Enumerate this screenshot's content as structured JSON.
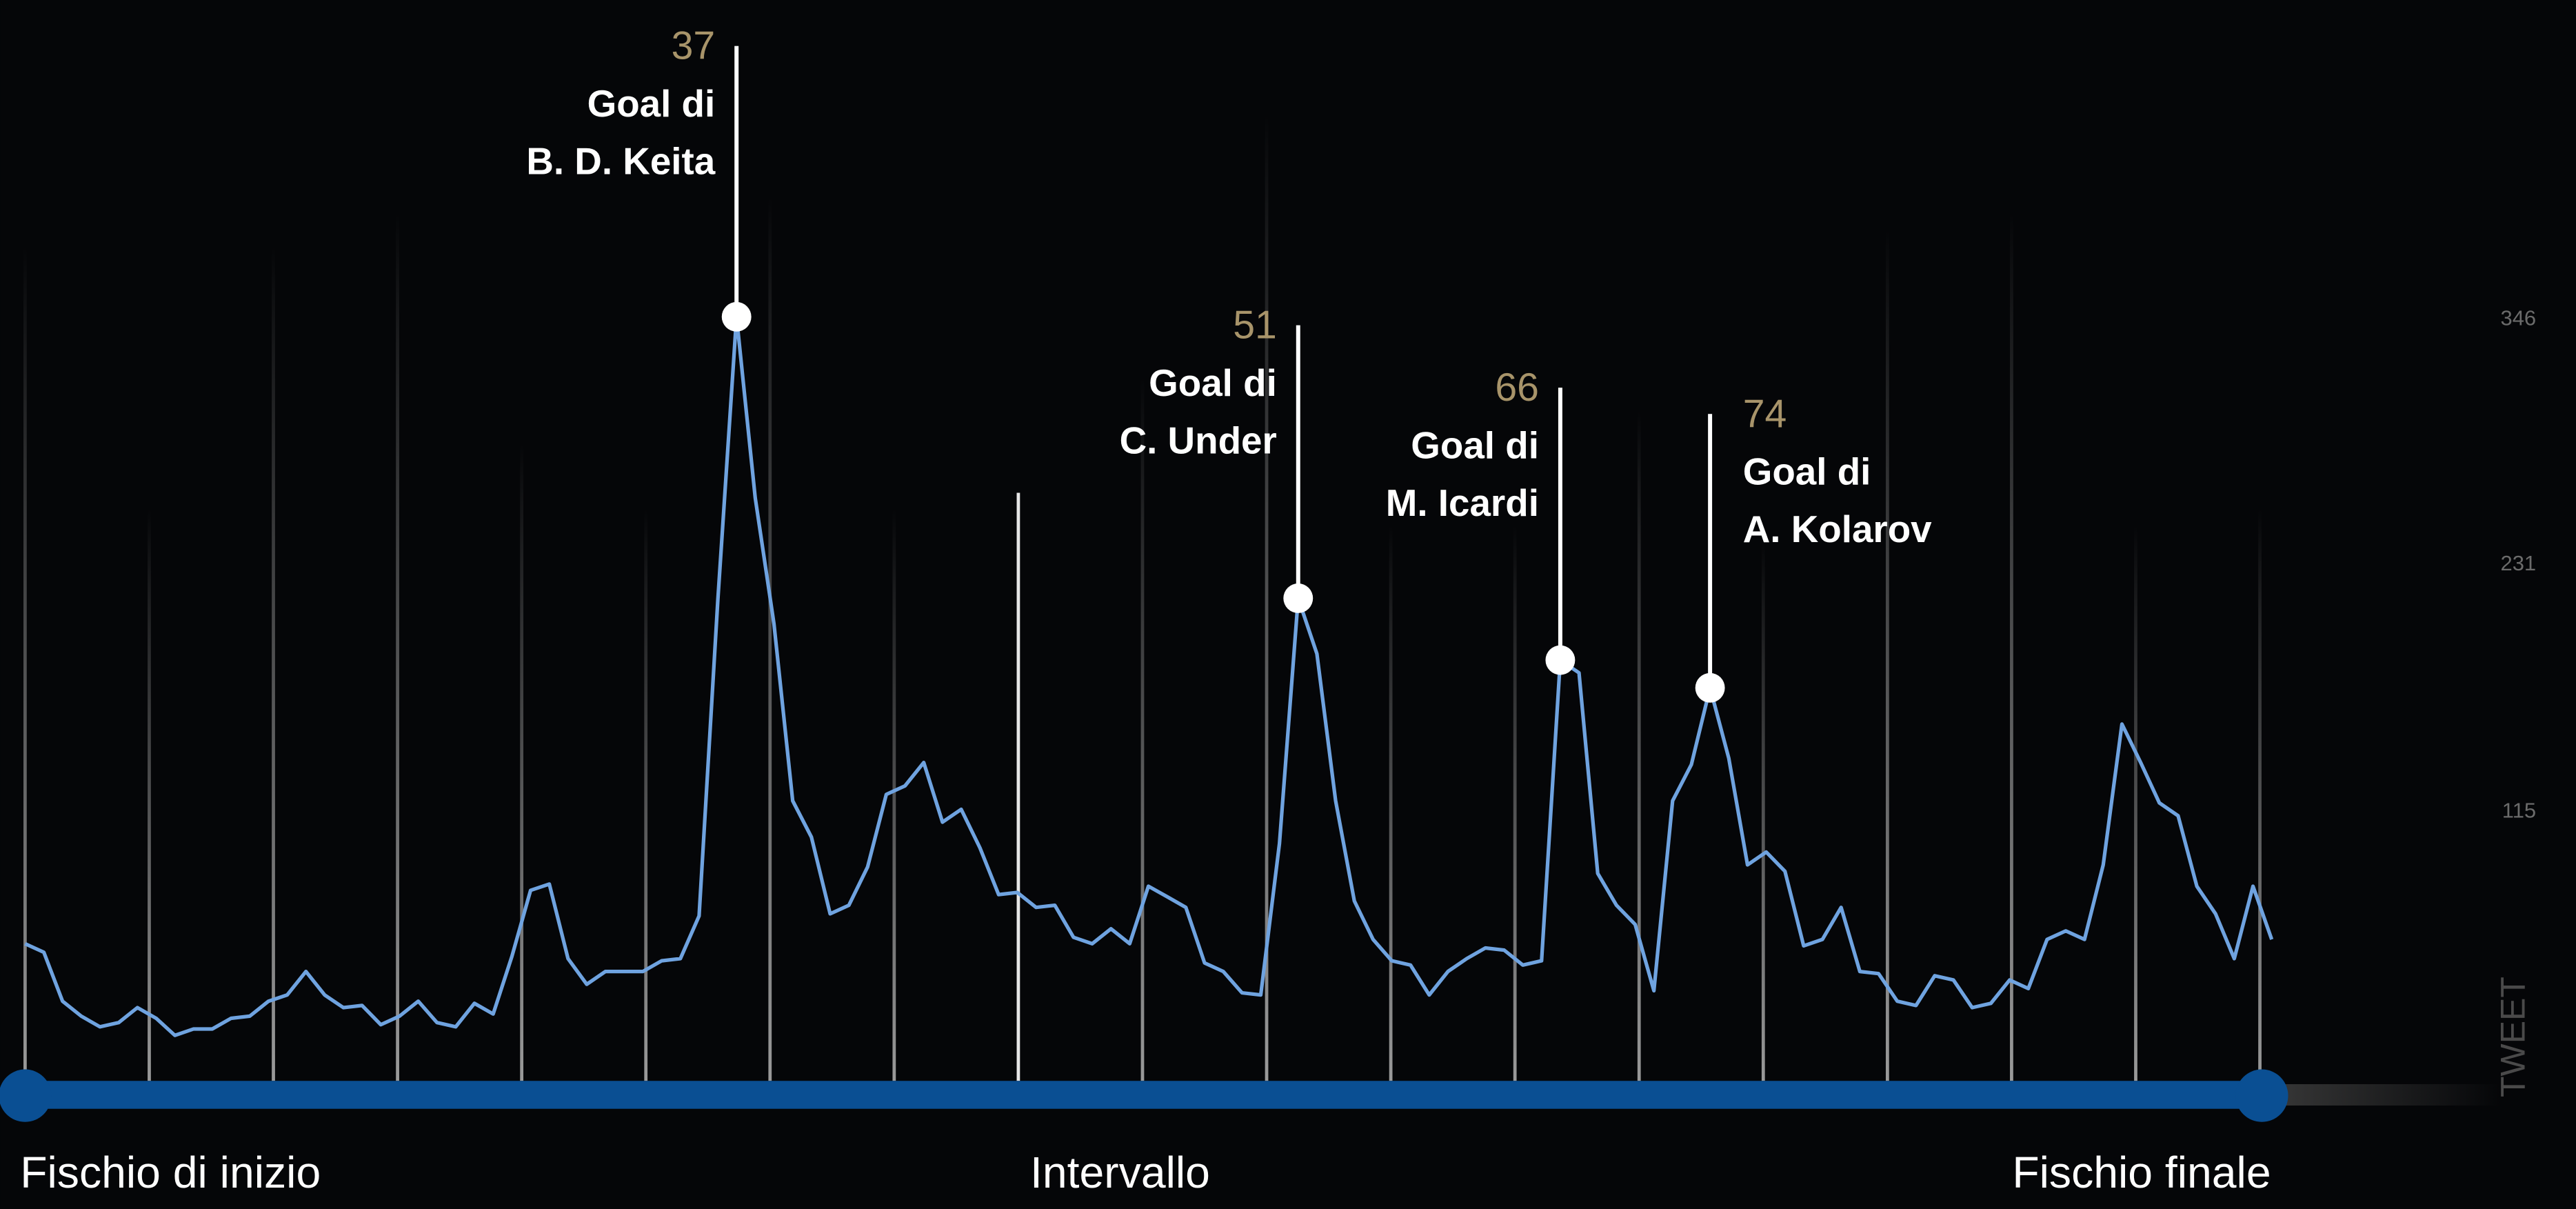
{
  "chart_data": {
    "type": "line",
    "axis_label": "TWEET",
    "x_labels": [
      "Fischio di inizio",
      "Intervallo",
      "Fischio finale"
    ],
    "color": "#6fa3e0",
    "values": [
      52,
      48,
      25,
      18,
      13,
      15,
      22,
      17,
      9,
      12,
      12,
      17,
      18,
      25,
      28,
      39,
      28,
      22,
      23,
      14,
      18,
      25,
      15,
      13,
      24,
      19,
      46,
      77,
      80,
      45,
      33,
      39,
      39,
      39,
      44,
      45,
      65,
      213,
      346,
      261,
      202,
      119,
      102,
      66,
      70,
      88,
      122,
      126,
      137,
      109,
      115,
      97,
      75,
      76,
      69,
      70,
      55,
      52,
      59,
      52,
      79,
      74,
      69,
      43,
      39,
      29,
      28,
      99,
      214,
      188,
      119,
      72,
      54,
      44,
      42,
      28,
      39,
      45,
      50,
      49,
      42,
      44,
      185,
      179,
      85,
      70,
      61,
      30,
      119,
      136,
      172,
      139,
      89,
      95,
      86,
      51,
      54,
      69,
      39,
      38,
      25,
      23,
      37,
      35,
      22,
      24,
      35,
      31,
      54,
      58,
      54,
      89,
      155,
      137,
      118,
      112,
      79,
      66,
      45,
      79,
      54
    ],
    "ylim": [
      0,
      473
    ],
    "yticks": [
      115,
      231,
      346
    ],
    "annotations": [
      {
        "minute": 37,
        "lines": [
          "Goal di",
          "B. D. Keita"
        ]
      },
      {
        "minute": 51,
        "lines": [
          "Goal di",
          "C. Under"
        ]
      },
      {
        "minute": 66,
        "lines": [
          "Goal di",
          "M. Icardi"
        ]
      },
      {
        "minute": 74,
        "lines": [
          "Goal di",
          "A. Kolarov"
        ]
      }
    ]
  }
}
